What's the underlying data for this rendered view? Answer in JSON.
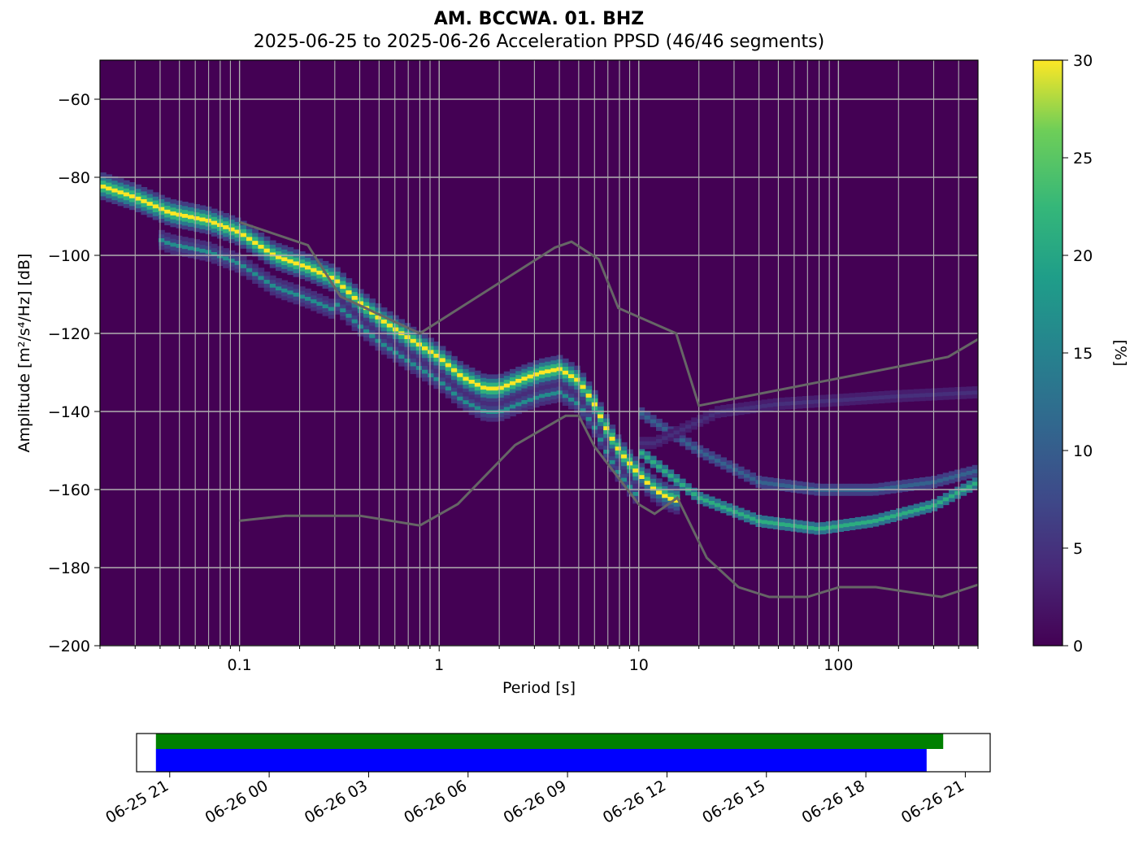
{
  "chart_data": {
    "type": "heatmap",
    "title": "AM. BCCWA. 01. BHZ",
    "subtitle": "2025-06-25 to 2025-06-26  Acceleration PPSD (46/46 segments)",
    "xlabel": "Period [s]",
    "ylabel": "Amplitude [m²/s⁴/Hz] [dB]",
    "x_scale": "log",
    "xlim": [
      0.02,
      500
    ],
    "ylim": [
      -200,
      -50
    ],
    "x_ticks": [
      0.1,
      1,
      10,
      100
    ],
    "x_tick_labels": [
      "0.1",
      "1",
      "10",
      "100"
    ],
    "y_ticks": [
      -200,
      -180,
      -160,
      -140,
      -120,
      -100,
      -80,
      -60
    ],
    "y_tick_labels": [
      "−200",
      "−180",
      "−160",
      "−140",
      "−120",
      "−100",
      "−80",
      "−60"
    ],
    "grid": true,
    "colorbar": {
      "label": "[%]",
      "range": [
        0,
        30
      ],
      "ticks": [
        0,
        5,
        10,
        15,
        20,
        25,
        30
      ],
      "tick_labels": [
        "0",
        "5",
        "10",
        "15",
        "20",
        "25",
        "30"
      ],
      "colormap": "viridis"
    },
    "mode_curve": {
      "name": "mode",
      "x": [
        0.02,
        0.03,
        0.045,
        0.07,
        0.1,
        0.15,
        0.22,
        0.3,
        0.4,
        0.5,
        0.7,
        1.0,
        1.3,
        1.7,
        2.0,
        2.5,
        3.2,
        4.0,
        5.0,
        6.0,
        7.0,
        8.0,
        10.0,
        12.0,
        14.0,
        16.0
      ],
      "y": [
        -82,
        -85,
        -89,
        -91,
        -94,
        -100,
        -103,
        -106,
        -112,
        -116,
        -121,
        -126,
        -131,
        -134,
        -134,
        -132,
        -130,
        -129,
        -132,
        -138,
        -145,
        -150,
        -156,
        -160,
        -162,
        -163
      ]
    },
    "nhnm": {
      "name": "NHNM",
      "x": [
        0.1,
        0.22,
        0.32,
        0.8,
        3.8,
        4.6,
        6.3,
        7.9,
        15.4,
        20.0,
        354.8,
        500
      ],
      "y": [
        -91.5,
        -97.4,
        -110.5,
        -120.0,
        -98.0,
        -96.5,
        -101.0,
        -113.5,
        -120.0,
        -138.5,
        -126.0,
        -121.5
      ]
    },
    "nlnm": {
      "name": "NLNM",
      "x": [
        0.1,
        0.17,
        0.4,
        0.8,
        1.24,
        2.4,
        4.3,
        5.0,
        6.0,
        10.0,
        12.0,
        15.6,
        21.9,
        31.6,
        45.0,
        70.0,
        101.0,
        154.0,
        328.0,
        500
      ],
      "y": [
        -168.0,
        -166.7,
        -166.7,
        -169.2,
        -163.7,
        -148.6,
        -141.1,
        -141.1,
        -149.0,
        -163.8,
        -166.2,
        -162.1,
        -177.5,
        -185.0,
        -187.5,
        -187.5,
        -185.0,
        -185.0,
        -187.5,
        -184.4
      ]
    },
    "noise_bands": [
      {
        "x": [
          10,
          20,
          40,
          80,
          150,
          300,
          500
        ],
        "y": [
          -150,
          -162,
          -168,
          -170,
          -168,
          -164,
          -158
        ]
      },
      {
        "x": [
          10,
          20,
          40,
          80,
          150,
          300,
          500
        ],
        "y": [
          -140,
          -150,
          -158,
          -160,
          -160,
          -158,
          -155
        ]
      },
      {
        "x": [
          12,
          25,
          50,
          100,
          200,
          500
        ],
        "y": [
          -148,
          -140,
          -138,
          -137,
          -136,
          -135
        ]
      }
    ],
    "time_axis": {
      "type": "timeline",
      "range": [
        "2025-06-25 20:00",
        "2025-06-26 21:45"
      ],
      "tick_labels": [
        "06-25 21",
        "06-26 00",
        "06-26 03",
        "06-26 06",
        "06-26 09",
        "06-26 12",
        "06-26 15",
        "06-26 18",
        "06-26 21"
      ],
      "tick_hours": [
        21,
        24,
        27,
        30,
        33,
        36,
        39,
        42,
        45
      ],
      "data_available": {
        "start": "2025-06-25 20:35",
        "end": "2025-06-26 20:20",
        "color": "#008000"
      },
      "used_in_psd": {
        "start": "2025-06-25 20:35",
        "end": "2025-06-26 19:50",
        "color": "#0000ff"
      }
    }
  }
}
